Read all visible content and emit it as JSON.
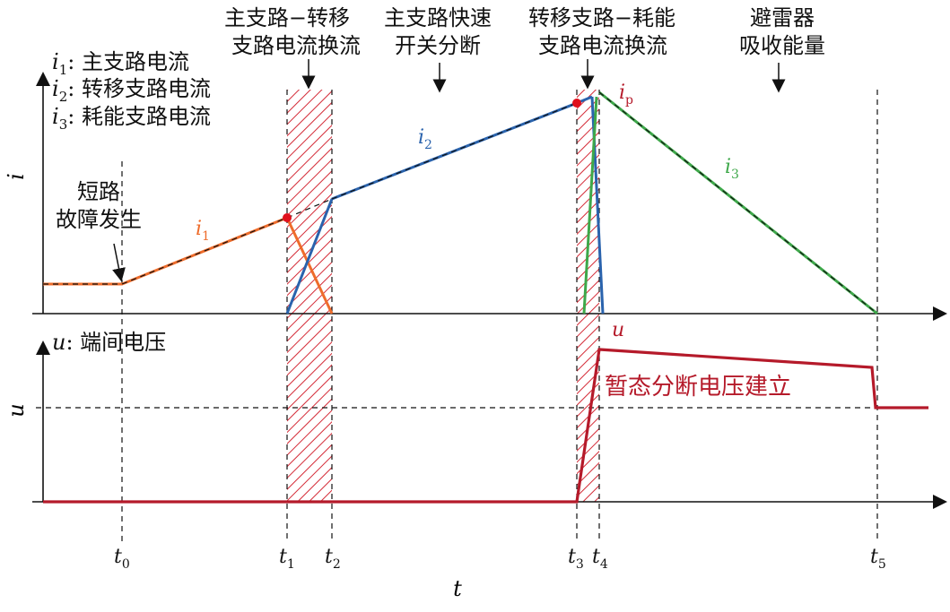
{
  "header": {
    "phase1": [
      "主支路−转移",
      "支路电流换流"
    ],
    "phase2": [
      "主支路快速",
      "开关分断"
    ],
    "phase3": [
      "转移支路−耗能",
      "支路电流换流"
    ],
    "phase4": [
      "避雷器",
      "吸收能量"
    ]
  },
  "legend": {
    "i1_sym": "i",
    "i1_sub": "1",
    "i1_text": ": 主支路电流",
    "i2_sym": "i",
    "i2_sub": "2",
    "i2_text": ": 转移支路电流",
    "i3_sym": "i",
    "i3_sub": "3",
    "i3_text": ": 耗能支路电流",
    "u_sym": "u",
    "u_text": ": 端间电压"
  },
  "annotations": {
    "fault": [
      "短路",
      "故障发生"
    ],
    "transient_voltage": "暂态分断电压建立"
  },
  "curve_labels": {
    "i1": {
      "sym": "i",
      "sub": "1"
    },
    "i2": {
      "sym": "i",
      "sub": "2"
    },
    "i3": {
      "sym": "i",
      "sub": "3"
    },
    "ip": {
      "sym": "i",
      "sub": "p"
    },
    "u": {
      "sym": "u"
    }
  },
  "axes": {
    "i_label": "i",
    "u_label": "u",
    "t_label": "t"
  },
  "time_marks": [
    {
      "sym": "t",
      "sub": "0"
    },
    {
      "sym": "t",
      "sub": "1"
    },
    {
      "sym": "t",
      "sub": "2"
    },
    {
      "sym": "t",
      "sub": "3"
    },
    {
      "sym": "t",
      "sub": "4"
    },
    {
      "sym": "t",
      "sub": "5"
    }
  ],
  "colors": {
    "i1": "#ee6c2b",
    "i2": "#2a63ad",
    "i3": "#3ea84a",
    "u": "#b51a2a",
    "hatch": "#d42a36",
    "axis": "#111111"
  }
}
